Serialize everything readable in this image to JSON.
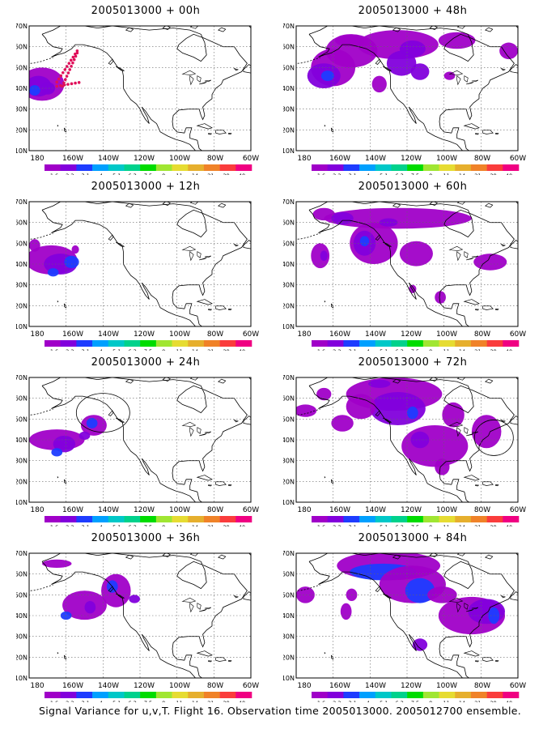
{
  "footer": "Signal Variance for u,v,T. Flight 16. Observation time 2005013000. 2005012700 ensemble.",
  "map_axes": {
    "lat_labels": [
      "70N",
      "60N",
      "50N",
      "40N",
      "30N",
      "20N",
      "10N"
    ],
    "lon_labels": [
      "180",
      "160W",
      "140W",
      "120W",
      "100W",
      "80W",
      "60W"
    ]
  },
  "colorbar": {
    "labels": [
      "1.6",
      "2.2",
      "3.1",
      "4",
      "5.1",
      "6.3",
      "7.5",
      "9",
      "11",
      "14",
      "21",
      "29",
      "40"
    ],
    "colors": [
      "#a000c8",
      "#8200dc",
      "#1e3cff",
      "#00a0ff",
      "#00c8c8",
      "#00d28c",
      "#00dc00",
      "#a0e632",
      "#e6dc32",
      "#e6af2d",
      "#f08228",
      "#fa3c3c",
      "#f00082"
    ]
  },
  "panels": [
    {
      "title": "2005013000 + 00h"
    },
    {
      "title": "2005013000 + 48h"
    },
    {
      "title": "2005013000 + 12h"
    },
    {
      "title": "2005013000 + 60h"
    },
    {
      "title": "2005013000 + 24h"
    },
    {
      "title": "2005013000 + 72h"
    },
    {
      "title": "2005013000 + 36h"
    },
    {
      "title": "2005013000 + 84h"
    }
  ],
  "colors": {
    "purple_low": "#a000c8",
    "purple_mid": "#8200dc",
    "blue": "#1e3cff",
    "cyan": "#00a0ff",
    "flight_track": "#e0105a"
  }
}
